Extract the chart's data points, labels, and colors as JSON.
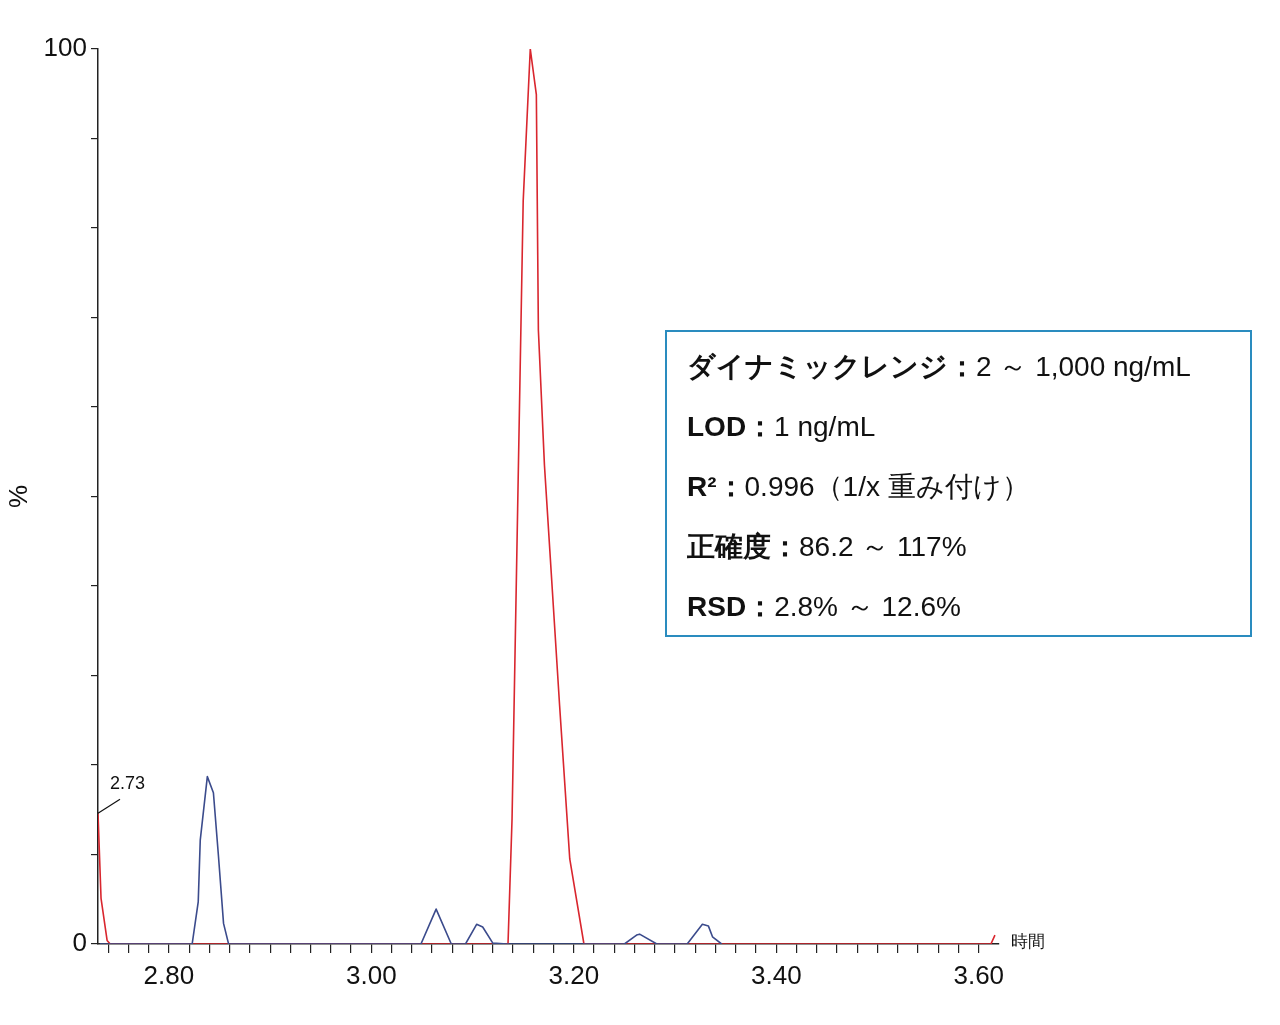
{
  "chart_data": {
    "type": "line",
    "ylabel": "%",
    "xlabel": "時間",
    "xlim": [
      2.73,
      3.62
    ],
    "xticks": [
      {
        "value": 2.74,
        "label": null
      },
      {
        "value": 2.76,
        "label": null
      },
      {
        "value": 2.78,
        "label": null
      },
      {
        "value": 2.8,
        "label": "2.80"
      },
      {
        "value": 2.82,
        "label": null
      },
      {
        "value": 2.84,
        "label": null
      },
      {
        "value": 2.86,
        "label": null
      },
      {
        "value": 2.88,
        "label": null
      },
      {
        "value": 2.9,
        "label": null
      },
      {
        "value": 2.92,
        "label": null
      },
      {
        "value": 2.94,
        "label": null
      },
      {
        "value": 2.96,
        "label": null
      },
      {
        "value": 2.98,
        "label": null
      },
      {
        "value": 3.0,
        "label": "3.00"
      },
      {
        "value": 3.02,
        "label": null
      },
      {
        "value": 3.04,
        "label": null
      },
      {
        "value": 3.06,
        "label": null
      },
      {
        "value": 3.08,
        "label": null
      },
      {
        "value": 3.1,
        "label": null
      },
      {
        "value": 3.12,
        "label": null
      },
      {
        "value": 3.14,
        "label": null
      },
      {
        "value": 3.16,
        "label": null
      },
      {
        "value": 3.18,
        "label": null
      },
      {
        "value": 3.2,
        "label": "3.20"
      },
      {
        "value": 3.22,
        "label": null
      },
      {
        "value": 3.24,
        "label": null
      },
      {
        "value": 3.26,
        "label": null
      },
      {
        "value": 3.28,
        "label": null
      },
      {
        "value": 3.3,
        "label": null
      },
      {
        "value": 3.32,
        "label": null
      },
      {
        "value": 3.34,
        "label": null
      },
      {
        "value": 3.36,
        "label": null
      },
      {
        "value": 3.38,
        "label": null
      },
      {
        "value": 3.4,
        "label": "3.40"
      },
      {
        "value": 3.42,
        "label": null
      },
      {
        "value": 3.44,
        "label": null
      },
      {
        "value": 3.46,
        "label": null
      },
      {
        "value": 3.48,
        "label": null
      },
      {
        "value": 3.5,
        "label": null
      },
      {
        "value": 3.52,
        "label": null
      },
      {
        "value": 3.54,
        "label": null
      },
      {
        "value": 3.56,
        "label": null
      },
      {
        "value": 3.58,
        "label": null
      },
      {
        "value": 3.6,
        "label": "3.60"
      }
    ],
    "ylim": [
      0,
      100
    ],
    "yticks": [
      0,
      {
        "value": 10,
        "label": null
      },
      {
        "value": 20,
        "label": null
      },
      {
        "value": 30,
        "label": null
      },
      {
        "value": 40,
        "label": null
      },
      {
        "value": 50,
        "label": null
      },
      {
        "value": 60,
        "label": null
      },
      {
        "value": 70,
        "label": null
      },
      {
        "value": 80,
        "label": null
      },
      {
        "value": 90,
        "label": null
      },
      100
    ],
    "grid": false,
    "legend": false,
    "marker": "none",
    "line_style": "solid",
    "series": [
      {
        "color": "#3b4b8c",
        "x": [
          2.732,
          2.823,
          2.829,
          2.831,
          2.838,
          2.844,
          2.849,
          2.854,
          2.859,
          3.049,
          3.064,
          3.079,
          3.093,
          3.104,
          3.11,
          3.12,
          3.134,
          3.25,
          3.262,
          3.265,
          3.282,
          3.312,
          3.327,
          3.333,
          3.337,
          3.346
        ],
        "values": [
          0,
          0,
          4.7,
          11.6,
          18.7,
          16.9,
          9.8,
          2.3,
          0,
          0,
          3.9,
          0,
          0,
          2.2,
          1.9,
          0.1,
          0,
          0,
          1.0,
          1.1,
          0,
          0,
          2.2,
          2.0,
          0.8,
          0
        ]
      },
      {
        "color": "#d9262e",
        "x": [
          2.73,
          2.733,
          2.739,
          2.742,
          3.135,
          3.139,
          3.15,
          3.157,
          3.163,
          3.165,
          3.171,
          3.186,
          3.196,
          3.21,
          3.612,
          3.616
        ],
        "values": [
          14.6,
          5.1,
          0.4,
          0,
          0,
          14,
          83,
          100,
          94.9,
          68.6,
          53.5,
          26.6,
          9.5,
          0,
          0,
          1
        ]
      }
    ],
    "annotations": [
      {
        "text": "2.73",
        "x": 2.73,
        "y": 14.6
      },
      "ダイナミックレンジ：2 ～ 1,000 ng/mL",
      "LOD：1 ng/mL",
      "R²：0.996（1/x 重み付け）",
      "正確度：86.2 ～ 117%",
      "RSD：2.8% ～ 12.6%"
    ]
  }
}
